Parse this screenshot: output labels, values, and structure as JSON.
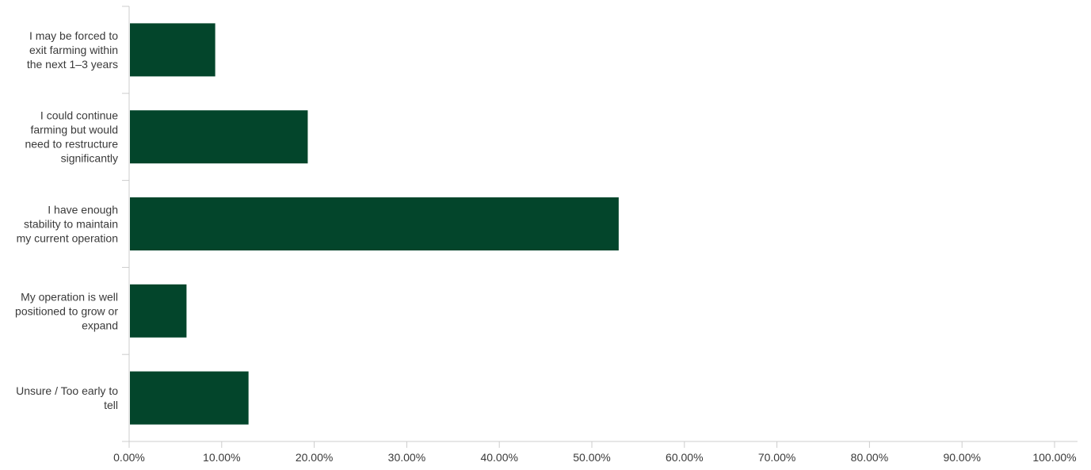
{
  "chart_data": {
    "type": "bar",
    "orientation": "horizontal",
    "title": "",
    "xlabel": "",
    "ylabel": "",
    "categories": [
      [
        "I may be forced to",
        "exit farming within",
        "the next 1–3 years"
      ],
      [
        "I could continue",
        "farming but would",
        "need to restructure",
        "significantly"
      ],
      [
        "I have enough",
        "stability to maintain",
        "my current operation"
      ],
      [
        "My operation is well",
        "positioned to grow or",
        "expand"
      ],
      [
        "Unsure / Too early to",
        "tell"
      ]
    ],
    "values": [
      9.3,
      19.3,
      52.9,
      6.2,
      12.9
    ],
    "xlim": [
      0,
      100
    ],
    "xticks": [
      "0.00%",
      "10.00%",
      "20.00%",
      "30.00%",
      "40.00%",
      "50.00%",
      "60.00%",
      "70.00%",
      "80.00%",
      "90.00%",
      "100.00%"
    ],
    "grid": false,
    "legend": "none",
    "bar_color": "#03452b",
    "axis_color": "#cccccc",
    "text_color": "#3a3a3a"
  }
}
